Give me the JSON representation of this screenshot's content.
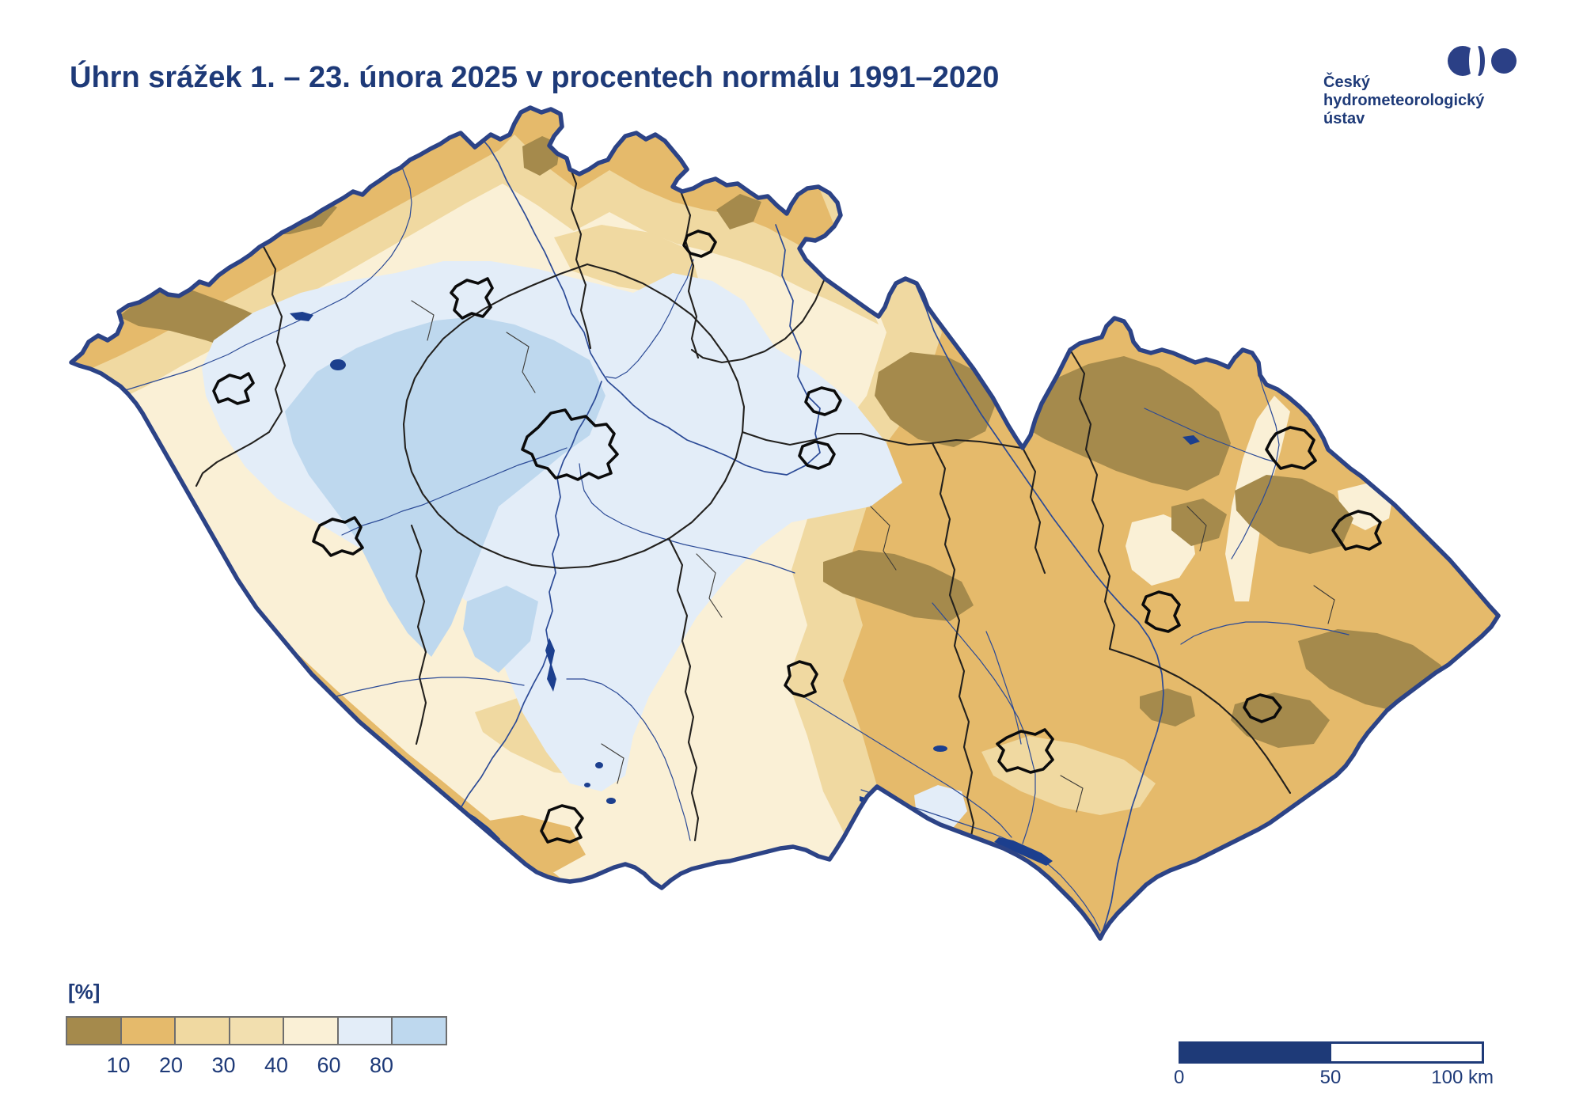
{
  "title": "Úhrn srážek 1. – 23. února 2025 v procentech normálu 1991–2020",
  "logo": {
    "line1": "Český",
    "line2": "hydrometeorologický",
    "line3": "ústav",
    "color": "#2b4086"
  },
  "legend": {
    "unit_label": "[%]",
    "tick_labels": [
      "10",
      "20",
      "30",
      "40",
      "60",
      "80"
    ],
    "colors": [
      "#a58a4c",
      "#e5ba6b",
      "#f0d9a1",
      "#f2dfaf",
      "#faf0d6",
      "#e3edf8",
      "#bed8ee"
    ]
  },
  "scale_bar": {
    "start_label": "0",
    "mid_label": "50",
    "end_label": "100 km"
  },
  "map": {
    "subject": "Czech Republic precipitation total 1.–23. Feb 2025 as percent of 1991–2020 normal",
    "zone_colors": {
      "z0": "#a58a4c",
      "z1": "#e5ba6b",
      "z2": "#f0d9a1",
      "z3": "#f2dfaf",
      "z4": "#faf0d6",
      "z5": "#e3edf8",
      "z6": "#bed8ee"
    },
    "line_colors": {
      "border": "#2c4386",
      "river": "#2b4a96",
      "water": "#1c3f8e",
      "navy": "#1e3a78"
    }
  }
}
